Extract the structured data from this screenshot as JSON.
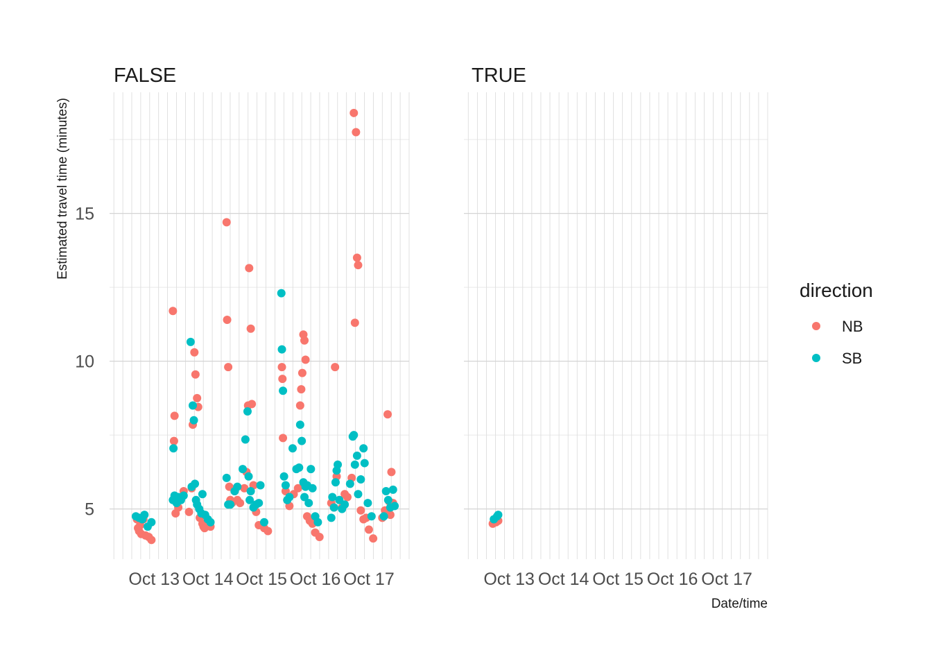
{
  "chart_data": {
    "type": "scatter",
    "facet_by": "direction-independent boolean",
    "facets": [
      {
        "label": "FALSE"
      },
      {
        "label": "TRUE"
      }
    ],
    "xlabel": "Date/time",
    "ylabel": "Estimated travel time (minutes)",
    "x_ticks": [
      "Oct 13",
      "Oct 14",
      "Oct 15",
      "Oct 16",
      "Oct 17"
    ],
    "y_ticks": [
      "5",
      "10",
      "15"
    ],
    "xlim": [
      "Oct 12 04:00",
      "Oct 17 18:00"
    ],
    "ylim": [
      3.3,
      19.1
    ],
    "grid": true,
    "legend": {
      "title": "direction",
      "placement": "right",
      "entries": [
        {
          "name": "NB",
          "color": "#F8766D"
        },
        {
          "name": "SB",
          "color": "#00BFC4"
        }
      ]
    },
    "series": [
      {
        "name": "NB",
        "color": "#F8766D",
        "panels": [
          [
            [
              12.68,
              4.65
            ],
            [
              12.7,
              4.35
            ],
            [
              12.72,
              4.25
            ],
            [
              12.74,
              4.45
            ],
            [
              12.76,
              4.15
            ],
            [
              12.8,
              4.65
            ],
            [
              12.84,
              4.1
            ],
            [
              12.9,
              4.05
            ],
            [
              12.95,
              3.95
            ],
            [
              13.35,
              11.7
            ],
            [
              13.38,
              8.15
            ],
            [
              13.37,
              7.3
            ],
            [
              13.4,
              4.85
            ],
            [
              13.45,
              5.05
            ],
            [
              13.55,
              5.6
            ],
            [
              13.65,
              4.9
            ],
            [
              13.7,
              5.7
            ],
            [
              13.72,
              7.85
            ],
            [
              13.75,
              10.3
            ],
            [
              13.77,
              9.55
            ],
            [
              13.8,
              8.75
            ],
            [
              13.82,
              8.45
            ],
            [
              13.85,
              4.7
            ],
            [
              13.9,
              4.5
            ],
            [
              13.92,
              4.4
            ],
            [
              13.94,
              4.35
            ],
            [
              14.05,
              4.4
            ],
            [
              14.35,
              14.7
            ],
            [
              14.36,
              11.4
            ],
            [
              14.38,
              9.8
            ],
            [
              14.4,
              5.75
            ],
            [
              14.42,
              5.3
            ],
            [
              14.45,
              5.2
            ],
            [
              14.5,
              5.6
            ],
            [
              14.55,
              5.3
            ],
            [
              14.6,
              5.2
            ],
            [
              14.68,
              5.7
            ],
            [
              14.72,
              6.25
            ],
            [
              14.75,
              8.5
            ],
            [
              14.77,
              13.15
            ],
            [
              14.8,
              11.1
            ],
            [
              14.82,
              8.55
            ],
            [
              14.85,
              5.8
            ],
            [
              14.9,
              4.9
            ],
            [
              14.95,
              4.45
            ],
            [
              15.05,
              4.35
            ],
            [
              15.12,
              4.25
            ],
            [
              15.38,
              9.8
            ],
            [
              15.39,
              9.4
            ],
            [
              15.4,
              7.4
            ],
            [
              15.45,
              5.6
            ],
            [
              15.48,
              5.3
            ],
            [
              15.52,
              5.1
            ],
            [
              15.6,
              5.5
            ],
            [
              15.68,
              5.7
            ],
            [
              15.72,
              8.5
            ],
            [
              15.74,
              9.05
            ],
            [
              15.76,
              9.6
            ],
            [
              15.78,
              10.9
            ],
            [
              15.8,
              10.7
            ],
            [
              15.82,
              10.05
            ],
            [
              15.85,
              4.75
            ],
            [
              15.9,
              4.6
            ],
            [
              15.95,
              4.5
            ],
            [
              16.0,
              4.2
            ],
            [
              16.08,
              4.05
            ],
            [
              16.3,
              5.2
            ],
            [
              16.35,
              5.05
            ],
            [
              16.37,
              9.8
            ],
            [
              16.4,
              6.1
            ],
            [
              16.45,
              5.3
            ],
            [
              16.5,
              5.05
            ],
            [
              16.55,
              5.5
            ],
            [
              16.6,
              5.4
            ],
            [
              16.68,
              6.05
            ],
            [
              16.72,
              18.4
            ],
            [
              16.74,
              11.3
            ],
            [
              16.76,
              17.75
            ],
            [
              16.78,
              13.5
            ],
            [
              16.8,
              13.25
            ],
            [
              16.85,
              4.95
            ],
            [
              16.9,
              4.65
            ],
            [
              16.95,
              4.7
            ],
            [
              17.0,
              4.3
            ],
            [
              17.08,
              4.0
            ],
            [
              17.25,
              4.7
            ],
            [
              17.3,
              4.95
            ],
            [
              17.35,
              8.2
            ],
            [
              17.38,
              5.25
            ],
            [
              17.4,
              4.8
            ],
            [
              17.42,
              6.25
            ],
            [
              17.45,
              5.2
            ]
          ],
          [
            [
              12.7,
              4.5
            ],
            [
              12.76,
              4.55
            ],
            [
              12.8,
              4.6
            ]
          ]
        ]
      },
      {
        "name": "SB",
        "color": "#00BFC4",
        "panels": [
          [
            [
              12.66,
              4.75
            ],
            [
              12.72,
              4.7
            ],
            [
              12.78,
              4.65
            ],
            [
              12.82,
              4.8
            ],
            [
              12.88,
              4.4
            ],
            [
              12.95,
              4.55
            ],
            [
              13.35,
              5.3
            ],
            [
              13.36,
              7.05
            ],
            [
              13.38,
              5.45
            ],
            [
              13.4,
              5.4
            ],
            [
              13.42,
              5.2
            ],
            [
              13.45,
              5.4
            ],
            [
              13.5,
              5.3
            ],
            [
              13.55,
              5.45
            ],
            [
              13.68,
              10.65
            ],
            [
              13.7,
              5.75
            ],
            [
              13.72,
              8.5
            ],
            [
              13.74,
              8.0
            ],
            [
              13.76,
              5.85
            ],
            [
              13.78,
              5.3
            ],
            [
              13.8,
              5.15
            ],
            [
              13.84,
              5.0
            ],
            [
              13.88,
              4.85
            ],
            [
              13.9,
              5.5
            ],
            [
              13.95,
              4.8
            ],
            [
              14.0,
              4.65
            ],
            [
              14.05,
              4.55
            ],
            [
              14.35,
              6.05
            ],
            [
              14.38,
              5.15
            ],
            [
              14.42,
              5.15
            ],
            [
              14.5,
              5.6
            ],
            [
              14.55,
              5.75
            ],
            [
              14.65,
              6.35
            ],
            [
              14.7,
              7.35
            ],
            [
              14.74,
              8.3
            ],
            [
              14.76,
              6.1
            ],
            [
              14.78,
              5.3
            ],
            [
              14.8,
              5.6
            ],
            [
              14.85,
              5.05
            ],
            [
              14.9,
              5.15
            ],
            [
              14.95,
              5.2
            ],
            [
              14.98,
              5.8
            ],
            [
              15.05,
              4.55
            ],
            [
              15.37,
              12.3
            ],
            [
              15.38,
              10.4
            ],
            [
              15.4,
              9.0
            ],
            [
              15.42,
              6.1
            ],
            [
              15.45,
              5.8
            ],
            [
              15.48,
              5.3
            ],
            [
              15.52,
              5.4
            ],
            [
              15.58,
              7.05
            ],
            [
              15.65,
              6.35
            ],
            [
              15.7,
              6.4
            ],
            [
              15.72,
              7.85
            ],
            [
              15.75,
              7.3
            ],
            [
              15.78,
              5.9
            ],
            [
              15.8,
              5.4
            ],
            [
              15.82,
              5.75
            ],
            [
              15.85,
              5.8
            ],
            [
              15.88,
              5.2
            ],
            [
              15.92,
              6.35
            ],
            [
              15.95,
              5.7
            ],
            [
              16.0,
              4.75
            ],
            [
              16.05,
              4.55
            ],
            [
              16.3,
              4.7
            ],
            [
              16.32,
              5.4
            ],
            [
              16.35,
              5.05
            ],
            [
              16.38,
              5.9
            ],
            [
              16.4,
              6.3
            ],
            [
              16.42,
              6.5
            ],
            [
              16.45,
              5.3
            ],
            [
              16.5,
              5.0
            ],
            [
              16.55,
              5.15
            ],
            [
              16.65,
              5.85
            ],
            [
              16.7,
              7.45
            ],
            [
              16.72,
              7.5
            ],
            [
              16.74,
              6.5
            ],
            [
              16.78,
              6.8
            ],
            [
              16.8,
              5.5
            ],
            [
              16.85,
              6.0
            ],
            [
              16.9,
              7.05
            ],
            [
              16.92,
              6.55
            ],
            [
              16.98,
              5.2
            ],
            [
              17.05,
              4.75
            ],
            [
              17.28,
              4.75
            ],
            [
              17.32,
              5.6
            ],
            [
              17.36,
              5.3
            ],
            [
              17.4,
              5.05
            ],
            [
              17.45,
              5.65
            ],
            [
              17.48,
              5.1
            ]
          ],
          [
            [
              12.72,
              4.65
            ],
            [
              12.78,
              4.75
            ],
            [
              12.8,
              4.8
            ]
          ]
        ]
      }
    ]
  }
}
